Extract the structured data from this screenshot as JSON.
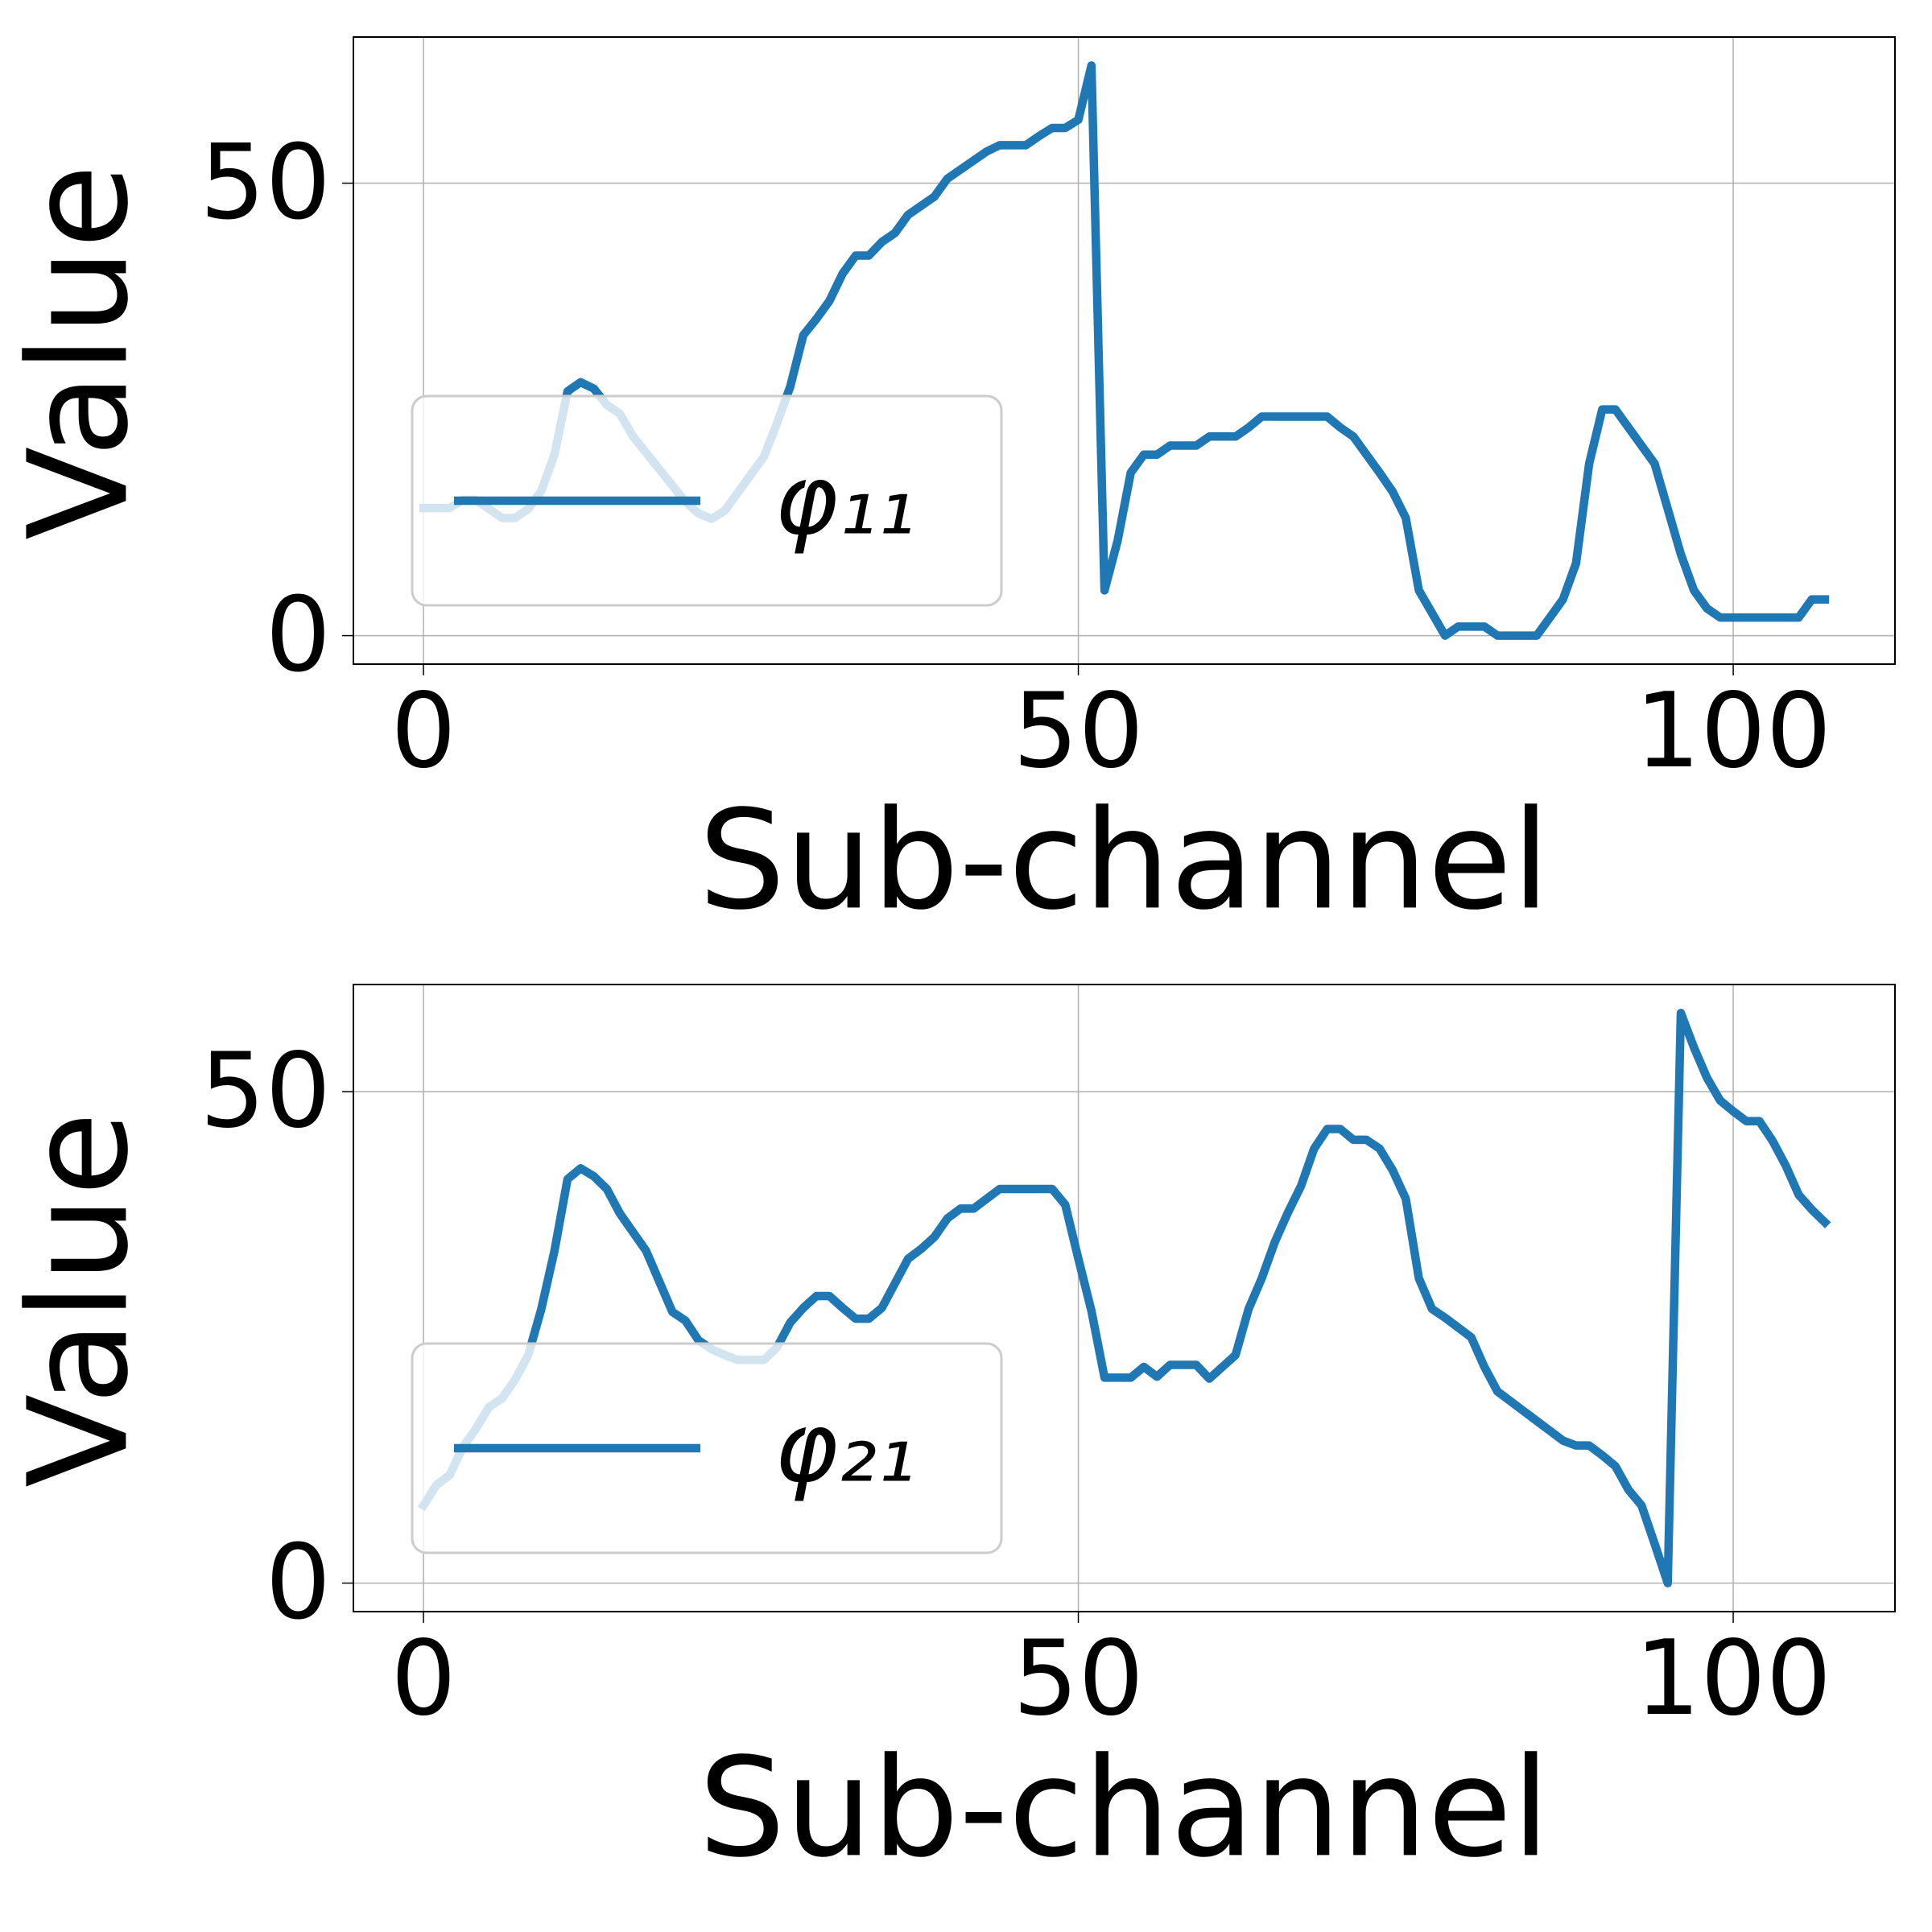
{
  "chart_data": [
    {
      "type": "line",
      "xlabel": "Sub-channel",
      "ylabel": "Value",
      "x": [
        0,
        1,
        2,
        3,
        4,
        5,
        6,
        7,
        8,
        9,
        10,
        11,
        12,
        13,
        14,
        15,
        16,
        17,
        18,
        19,
        20,
        21,
        22,
        23,
        24,
        25,
        26,
        27,
        28,
        29,
        30,
        31,
        32,
        33,
        34,
        35,
        36,
        37,
        38,
        39,
        40,
        41,
        42,
        43,
        44,
        45,
        46,
        47,
        48,
        49,
        50,
        51,
        52,
        53,
        54,
        55,
        56,
        57,
        58,
        59,
        60,
        61,
        62,
        63,
        64,
        65,
        66,
        67,
        68,
        69,
        70,
        71,
        72,
        73,
        74,
        75,
        76,
        77,
        78,
        79,
        80,
        81,
        82,
        83,
        84,
        85,
        86,
        87,
        88,
        89,
        90,
        91,
        92,
        93,
        94,
        95,
        96,
        97,
        98,
        99,
        100,
        101,
        102,
        103,
        104,
        105,
        106,
        107
      ],
      "series": [
        {
          "name": "φ₁₁",
          "color": "#1f77b4",
          "values": [
            14.1,
            14.1,
            14.1,
            15,
            15,
            14,
            13,
            13,
            14,
            16,
            20,
            27,
            28,
            27.3,
            25.5,
            24.5,
            22,
            20.2,
            18.4,
            16.6,
            14.8,
            13.5,
            12.9,
            13.8,
            15.8,
            17.8,
            19.8,
            23.5,
            27.5,
            33.2,
            35,
            37,
            40,
            42,
            42,
            43.5,
            44.5,
            46.5,
            47.5,
            48.5,
            50.5,
            51.5,
            52.5,
            53.5,
            54.2,
            54.2,
            54.2,
            55.2,
            56.1,
            56.1,
            57,
            63,
            5,
            10.5,
            18,
            20,
            20,
            21,
            21,
            21,
            22,
            22,
            22,
            23,
            24.2,
            24.2,
            24.2,
            24.2,
            24.2,
            24.2,
            23,
            22,
            20,
            18,
            15.9,
            13,
            5,
            2.5,
            0,
            1,
            1,
            1,
            0,
            0,
            0,
            0,
            2,
            4,
            8,
            19,
            25,
            25,
            23,
            21,
            19,
            14,
            9,
            5,
            3,
            2,
            2,
            2,
            2,
            2,
            2,
            2,
            4,
            4
          ]
        }
      ],
      "xlim": [
        -5.35,
        112.35
      ],
      "ylim": [
        -3.15,
        66.15
      ],
      "xticks": [
        0,
        50,
        100
      ],
      "yticks": [
        0,
        50
      ],
      "grid": true,
      "legend": "lower left"
    },
    {
      "type": "line",
      "xlabel": "Sub-channel",
      "ylabel": "Value",
      "x": [
        0,
        1,
        2,
        3,
        4,
        5,
        6,
        7,
        8,
        9,
        10,
        11,
        12,
        13,
        14,
        15,
        16,
        17,
        18,
        19,
        20,
        21,
        22,
        23,
        24,
        25,
        26,
        27,
        28,
        29,
        30,
        31,
        32,
        33,
        34,
        35,
        36,
        37,
        38,
        39,
        40,
        41,
        42,
        43,
        44,
        45,
        46,
        47,
        48,
        49,
        50,
        51,
        52,
        53,
        54,
        55,
        56,
        57,
        58,
        59,
        60,
        61,
        62,
        63,
        64,
        65,
        66,
        67,
        68,
        69,
        70,
        71,
        72,
        73,
        74,
        75,
        76,
        77,
        78,
        79,
        80,
        81,
        82,
        83,
        84,
        85,
        86,
        87,
        88,
        89,
        90,
        91,
        92,
        93,
        94,
        95,
        96,
        97,
        98,
        99,
        100,
        101,
        102,
        103,
        104,
        105,
        106,
        107
      ],
      "series": [
        {
          "name": "φ₂₁",
          "color": "#1f77b4",
          "values": [
            7.9,
            10,
            11,
            13.8,
            15.7,
            17.9,
            18.8,
            20.7,
            23.2,
            27.9,
            33.8,
            41.1,
            42.2,
            41.4,
            40.1,
            37.6,
            35.7,
            33.8,
            30.7,
            27.6,
            26.7,
            24.7,
            23.8,
            23.2,
            22.7,
            22.7,
            22.7,
            24,
            26.5,
            28,
            29.2,
            29.2,
            28,
            26.9,
            26.9,
            28,
            30.5,
            33,
            34,
            35.2,
            37.1,
            38.1,
            38.1,
            39.1,
            40.1,
            40.1,
            40.1,
            40.1,
            40.1,
            38.5,
            33,
            27.7,
            20.9,
            20.9,
            20.9,
            22,
            21,
            22.2,
            22.2,
            22.2,
            20.8,
            22,
            23.2,
            27.9,
            31,
            34.7,
            37.7,
            40.4,
            44.2,
            46.2,
            46.2,
            45.1,
            45.1,
            44.2,
            42,
            39.1,
            31,
            27.9,
            27,
            26,
            25,
            22,
            19.5,
            18.5,
            17.5,
            16.5,
            15.5,
            14.5,
            14,
            14,
            13,
            11.9,
            9.5,
            7.9,
            4,
            0,
            58,
            54.5,
            51.4,
            49.1,
            48,
            47,
            47,
            45,
            42.5,
            39.5,
            38,
            36.7
          ]
        }
      ],
      "xlim": [
        -5.35,
        112.35
      ],
      "ylim": [
        -2.9,
        60.9
      ],
      "xticks": [
        0,
        50,
        100
      ],
      "yticks": [
        0,
        50
      ],
      "grid": true,
      "legend": "lower left"
    }
  ]
}
